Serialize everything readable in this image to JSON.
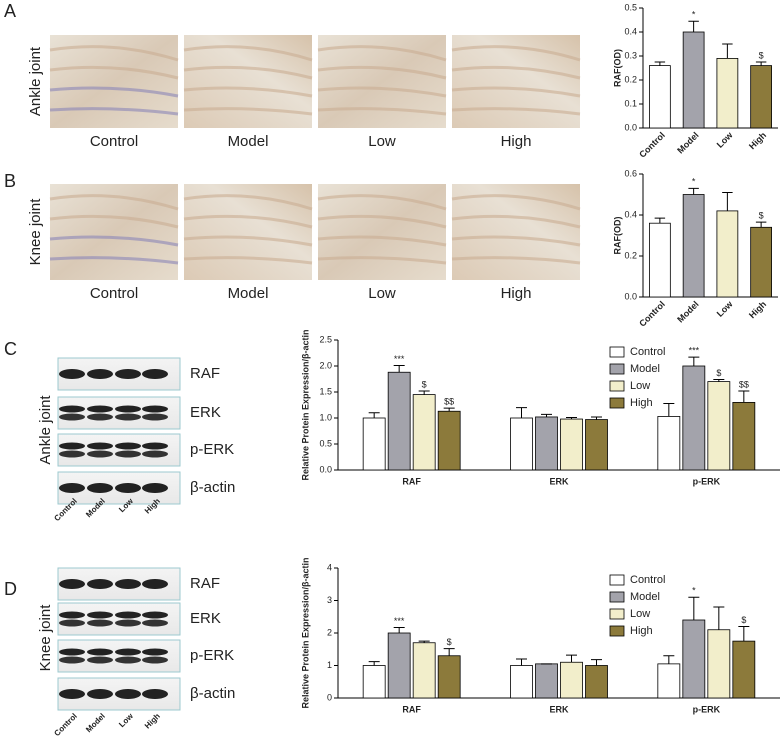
{
  "sections": [
    {
      "letter": "A",
      "row_label": "Ankle joint",
      "image_labels": [
        "Control",
        "Model",
        "Low",
        "High"
      ]
    },
    {
      "letter": "B",
      "row_label": "Knee joint",
      "image_labels": [
        "Control",
        "Model",
        "Low",
        "High"
      ]
    },
    {
      "letter": "C",
      "row_label": "Ankle joint",
      "bands": [
        "RAF",
        "ERK",
        "p-ERK",
        "β-actin"
      ],
      "lanes": [
        "Control",
        "Model",
        "Low",
        "High"
      ]
    },
    {
      "letter": "D",
      "row_label": "Knee joint",
      "bands": [
        "RAF",
        "ERK",
        "p-ERK",
        "β-actin"
      ],
      "lanes": [
        "Control",
        "Model",
        "Low",
        "High"
      ]
    }
  ],
  "chart_data": [
    {
      "type": "bar",
      "y_label": "RAF(OD)",
      "categories": [
        "Control",
        "Model",
        "Low",
        "High"
      ],
      "values": [
        0.26,
        0.4,
        0.29,
        0.26
      ],
      "errors": [
        0.015,
        0.045,
        0.06,
        0.015
      ],
      "annotations": [
        null,
        "*",
        null,
        "$"
      ],
      "colors": [
        "#ffffff",
        "#a3a3ab",
        "#f2eecb",
        "#8c7a3b"
      ],
      "ylim": [
        0,
        0.5
      ],
      "yticks": [
        {
          "value": 0,
          "label": "0.0"
        },
        0.1,
        0.2,
        0.3,
        0.4,
        0.5
      ]
    },
    {
      "type": "bar",
      "y_label": "RAF(OD)",
      "categories": [
        "Control",
        "Model",
        "Low",
        "High"
      ],
      "values": [
        0.36,
        0.5,
        0.42,
        0.34
      ],
      "errors": [
        0.025,
        0.03,
        0.09,
        0.025
      ],
      "annotations": [
        null,
        "*",
        null,
        "$"
      ],
      "colors": [
        "#ffffff",
        "#a3a3ab",
        "#f2eecb",
        "#8c7a3b"
      ],
      "ylim": [
        0,
        0.6
      ],
      "yticks": [
        {
          "value": 0,
          "label": "0.0"
        },
        0.2,
        0.4,
        0.6
      ]
    },
    {
      "type": "bar",
      "y_label": "Relative Protein Expression/β-actin",
      "categories": [
        "RAF",
        "ERK",
        "p-ERK"
      ],
      "series": [
        {
          "name": "Control",
          "color": "#ffffff",
          "values": [
            1.0,
            1.0,
            1.03
          ],
          "errors": [
            0.1,
            0.2,
            0.25
          ],
          "annotations": [
            null,
            null,
            null
          ]
        },
        {
          "name": "Model",
          "color": "#a3a3ab",
          "values": [
            1.88,
            1.02,
            2.0
          ],
          "errors": [
            0.13,
            0.05,
            0.17
          ],
          "annotations": [
            "***",
            null,
            "***"
          ]
        },
        {
          "name": "Low",
          "color": "#f2eecb",
          "values": [
            1.45,
            0.98,
            1.7
          ],
          "errors": [
            0.07,
            0.03,
            0.04
          ],
          "annotations": [
            "$",
            null,
            "$"
          ]
        },
        {
          "name": "High",
          "color": "#8c7a3b",
          "values": [
            1.13,
            0.97,
            1.3
          ],
          "errors": [
            0.06,
            0.05,
            0.22
          ],
          "annotations": [
            "$$",
            null,
            "$$"
          ]
        }
      ],
      "legend": "upper right",
      "ylim": [
        0,
        2.5
      ],
      "yticks": [
        {
          "value": 0,
          "label": "0.0"
        },
        0.5,
        {
          "value": 1,
          "label": "1.0"
        },
        1.5,
        {
          "value": 2,
          "label": "2.0"
        },
        2.5
      ]
    },
    {
      "type": "bar",
      "y_label": "Relative Protein Expression/β-actin",
      "categories": [
        "RAF",
        "ERK",
        "p-ERK"
      ],
      "series": [
        {
          "name": "Control",
          "color": "#ffffff",
          "values": [
            1.0,
            1.0,
            1.05
          ],
          "errors": [
            0.12,
            0.2,
            0.25
          ],
          "annotations": [
            null,
            null,
            null
          ]
        },
        {
          "name": "Model",
          "color": "#a3a3ab",
          "values": [
            2.0,
            1.05,
            2.4
          ],
          "errors": [
            0.17,
            0,
            0.7
          ],
          "annotations": [
            "***",
            null,
            "*"
          ]
        },
        {
          "name": "Low",
          "color": "#f2eecb",
          "values": [
            1.7,
            1.1,
            2.1
          ],
          "errors": [
            0.05,
            0.22,
            0.7
          ],
          "annotations": [
            null,
            null,
            null
          ]
        },
        {
          "name": "High",
          "color": "#8c7a3b",
          "values": [
            1.3,
            1.0,
            1.75
          ],
          "errors": [
            0.22,
            0.18,
            0.45
          ],
          "annotations": [
            "$",
            null,
            "$"
          ]
        }
      ],
      "legend": "upper right",
      "ylim": [
        0,
        4
      ],
      "yticks": [
        0,
        1,
        2,
        3,
        4
      ]
    }
  ]
}
